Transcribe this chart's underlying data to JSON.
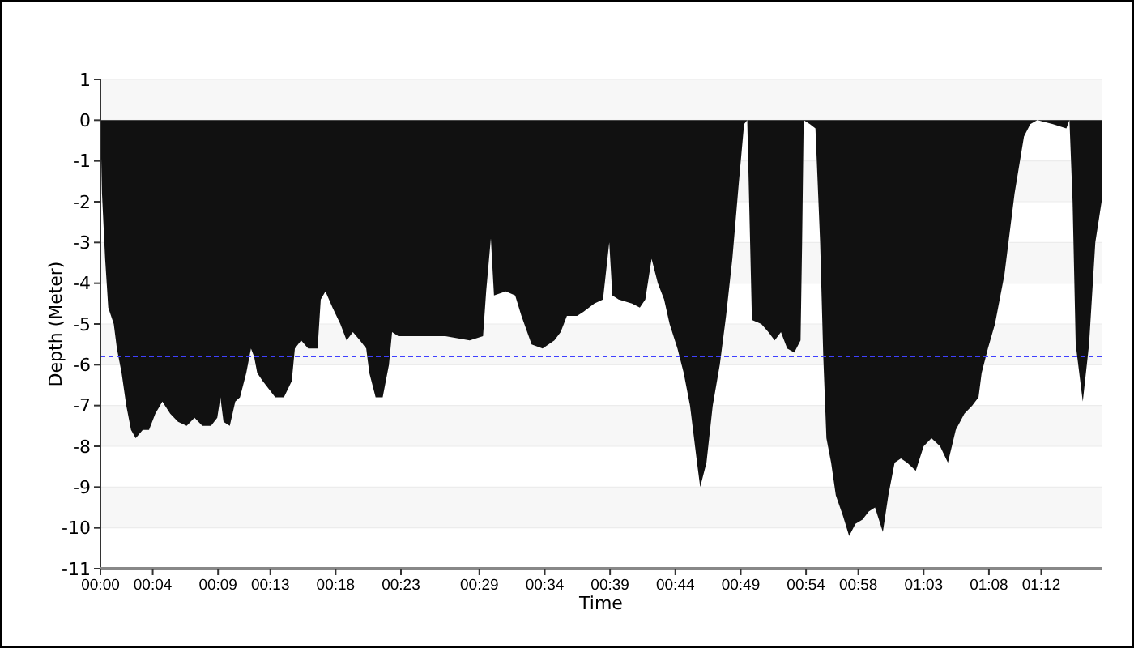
{
  "chart_data": {
    "type": "area",
    "xlabel": "Time",
    "ylabel": "Depth (Meter)",
    "x": [
      0,
      0.002,
      0.006,
      0.01,
      0.017,
      0.021,
      0.027,
      0.033,
      0.039,
      0.045,
      0.054,
      0.062,
      0.07,
      0.079,
      0.089,
      0.099,
      0.11,
      0.12,
      0.13,
      0.141,
      0.149,
      0.153,
      0.157,
      0.165,
      0.172,
      0.178,
      0.186,
      0.192,
      0.196,
      0.2,
      0.207,
      0.215,
      0.223,
      0.234,
      0.244,
      0.248,
      0.256,
      0.265,
      0.277,
      0.281,
      0.287,
      0.296,
      0.306,
      0.314,
      0.322,
      0.331,
      0.339,
      0.343,
      0.351,
      0.36,
      0.368,
      0.372,
      0.38,
      0.409,
      0.44,
      0.471,
      0.488,
      0.492,
      0.498,
      0.502,
      0.517,
      0.529,
      0.537,
      0.55,
      0.564,
      0.579,
      0.587,
      0.595,
      0.608,
      0.616,
      0.63,
      0.641,
      0.649,
      0.653,
      0.661,
      0.678,
      0.688,
      0.695,
      0.703,
      0.711,
      0.719,
      0.726,
      0.736,
      0.744,
      0.752,
      0.761,
      0.765,
      0.773,
      0.781,
      0.79,
      0.798,
      0.806,
      0.814,
      0.821,
      0.825,
      0.831,
      0.843,
      0.852,
      0.86,
      0.868,
      0.876,
      0.885,
      0.893,
      0.895,
      0.897,
      0.905,
      0.912,
      0.918,
      0.922,
      0.926,
      0.932,
      0.938,
      0.947,
      0.955,
      0.963,
      0.972,
      0.98,
      0.988,
      0.998,
      1.005,
      1.013,
      1.021,
      1.029,
      1.04,
      1.05,
      1.06,
      1.071,
      1.081,
      1.091,
      1.102,
      1.112,
      1.12,
      1.124,
      1.132,
      1.141,
      1.153,
      1.166,
      1.178,
      1.186,
      1.195,
      1.215,
      1.232,
      1.236,
      1.24,
      1.244,
      1.253,
      1.261,
      1.269,
      1.277
    ],
    "series": [
      {
        "color": "#111111",
        "values": [
          0,
          -1.8,
          -3.4,
          -4.6,
          -5,
          -5.6,
          -6.2,
          -7,
          -7.6,
          -7.8,
          -7.6,
          -7.6,
          -7.2,
          -6.9,
          -7.2,
          -7.4,
          -7.5,
          -7.3,
          -7.5,
          -7.5,
          -7.3,
          -6.8,
          -7.4,
          -7.5,
          -6.9,
          -6.8,
          -6.2,
          -5.6,
          -5.8,
          -6.2,
          -6.4,
          -6.6,
          -6.8,
          -6.8,
          -6.4,
          -5.6,
          -5.4,
          -5.6,
          -5.6,
          -4.4,
          -4.2,
          -4.6,
          -5,
          -5.4,
          -5.2,
          -5.4,
          -5.6,
          -6.2,
          -6.8,
          -6.8,
          -6,
          -5.2,
          -5.3,
          -5.3,
          -5.3,
          -5.4,
          -5.3,
          -4.2,
          -2.9,
          -4.3,
          -4.2,
          -4.3,
          -4.8,
          -5.5,
          -5.6,
          -5.4,
          -5.2,
          -4.8,
          -4.8,
          -4.7,
          -4.5,
          -4.4,
          -3,
          -4.3,
          -4.4,
          -4.5,
          -4.6,
          -4.4,
          -3.4,
          -4,
          -4.4,
          -5,
          -5.6,
          -6.2,
          -7,
          -8.4,
          -9,
          -8.4,
          -7,
          -6,
          -4.8,
          -3.4,
          -1.6,
          -0.1,
          0,
          -4.9,
          -5,
          -5.2,
          -5.4,
          -5.2,
          -5.6,
          -5.7,
          -5.4,
          -3,
          0,
          -0.1,
          -0.2,
          -3,
          -5.8,
          -7.8,
          -8.4,
          -9.2,
          -9.7,
          -10.2,
          -9.9,
          -9.8,
          -9.6,
          -9.5,
          -10.1,
          -9.2,
          -8.4,
          -8.3,
          -8.4,
          -8.6,
          -8,
          -7.8,
          -8,
          -8.4,
          -7.6,
          -7.2,
          -7,
          -6.8,
          -6.2,
          -5.6,
          -5,
          -3.8,
          -1.8,
          -0.4,
          -0.1,
          0,
          -0.1,
          -0.2,
          0,
          -2,
          -5.5,
          -6.9,
          -5.5,
          -3,
          -2
        ]
      }
    ],
    "xlim": [
      0,
      1.277
    ],
    "xticks": [
      {
        "value": 0,
        "label": "00:00"
      },
      {
        "value": 0.0667,
        "label": "00:04"
      },
      {
        "value": 0.15,
        "label": "00:09"
      },
      {
        "value": 0.2167,
        "label": "00:13"
      },
      {
        "value": 0.3,
        "label": "00:18"
      },
      {
        "value": 0.3833,
        "label": "00:23"
      },
      {
        "value": 0.4833,
        "label": "00:29"
      },
      {
        "value": 0.5667,
        "label": "00:34"
      },
      {
        "value": 0.65,
        "label": "00:39"
      },
      {
        "value": 0.7333,
        "label": "00:44"
      },
      {
        "value": 0.8167,
        "label": "00:49"
      },
      {
        "value": 0.9,
        "label": "00:54"
      },
      {
        "value": 0.9667,
        "label": "00:58"
      },
      {
        "value": 1.05,
        "label": "01:03"
      },
      {
        "value": 1.1333,
        "label": "01:08"
      },
      {
        "value": 1.2,
        "label": "01:12"
      }
    ],
    "ylim": [
      -11,
      1
    ],
    "yticks": [
      1,
      0,
      -1,
      -2,
      -3,
      -4,
      -5,
      -6,
      -7,
      -8,
      -9,
      -10,
      -11
    ],
    "grid": "y",
    "ref_lines": [
      {
        "axis": "y",
        "value": -5.8,
        "color": "#4040ff",
        "line_style": "dashed"
      }
    ]
  }
}
